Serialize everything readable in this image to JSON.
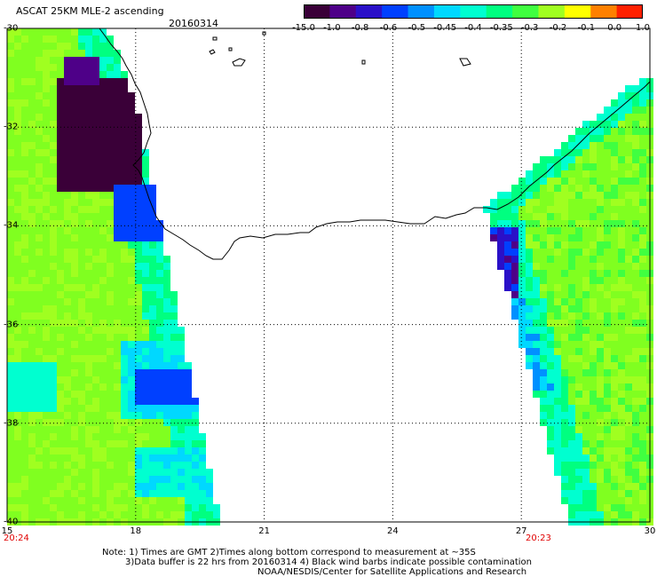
{
  "header": {
    "title": "ASCAT 25KM MLE-2 ascending",
    "date": "20160314"
  },
  "colorbar": {
    "labels": [
      "-15.0",
      "-1.0",
      "-0.8",
      "-0.6",
      "-0.5",
      "-0.45",
      "-0.4",
      "-0.35",
      "-0.3",
      "-0.2",
      "-0.1",
      "0.0",
      "1.0"
    ],
    "colors": [
      "#3a0038",
      "#4e0088",
      "#2a10c8",
      "#0040ff",
      "#0090ff",
      "#00d8ff",
      "#00ffd0",
      "#00ff80",
      "#40ff40",
      "#a0ff20",
      "#ffff00",
      "#ff8000",
      "#ff2000"
    ]
  },
  "axes": {
    "lat_labels": [
      "-30",
      "-32",
      "-34",
      "-36",
      "-38",
      "-40"
    ],
    "lon_labels": [
      "15",
      "18",
      "21",
      "24",
      "27",
      "30"
    ]
  },
  "swaths": {
    "left_time": "20:24",
    "right_time": "20:23"
  },
  "notes": {
    "line1": "Note: 1) Times are GMT 2)Times along bottom correspond to measurement at ~35S",
    "line2": "3)Data buffer is 22 hrs from 20160314 4) Black wind barbs indicate possible contamination",
    "line3": "NOAA/NESDIS/Center for Satellite Applications and Research"
  }
}
